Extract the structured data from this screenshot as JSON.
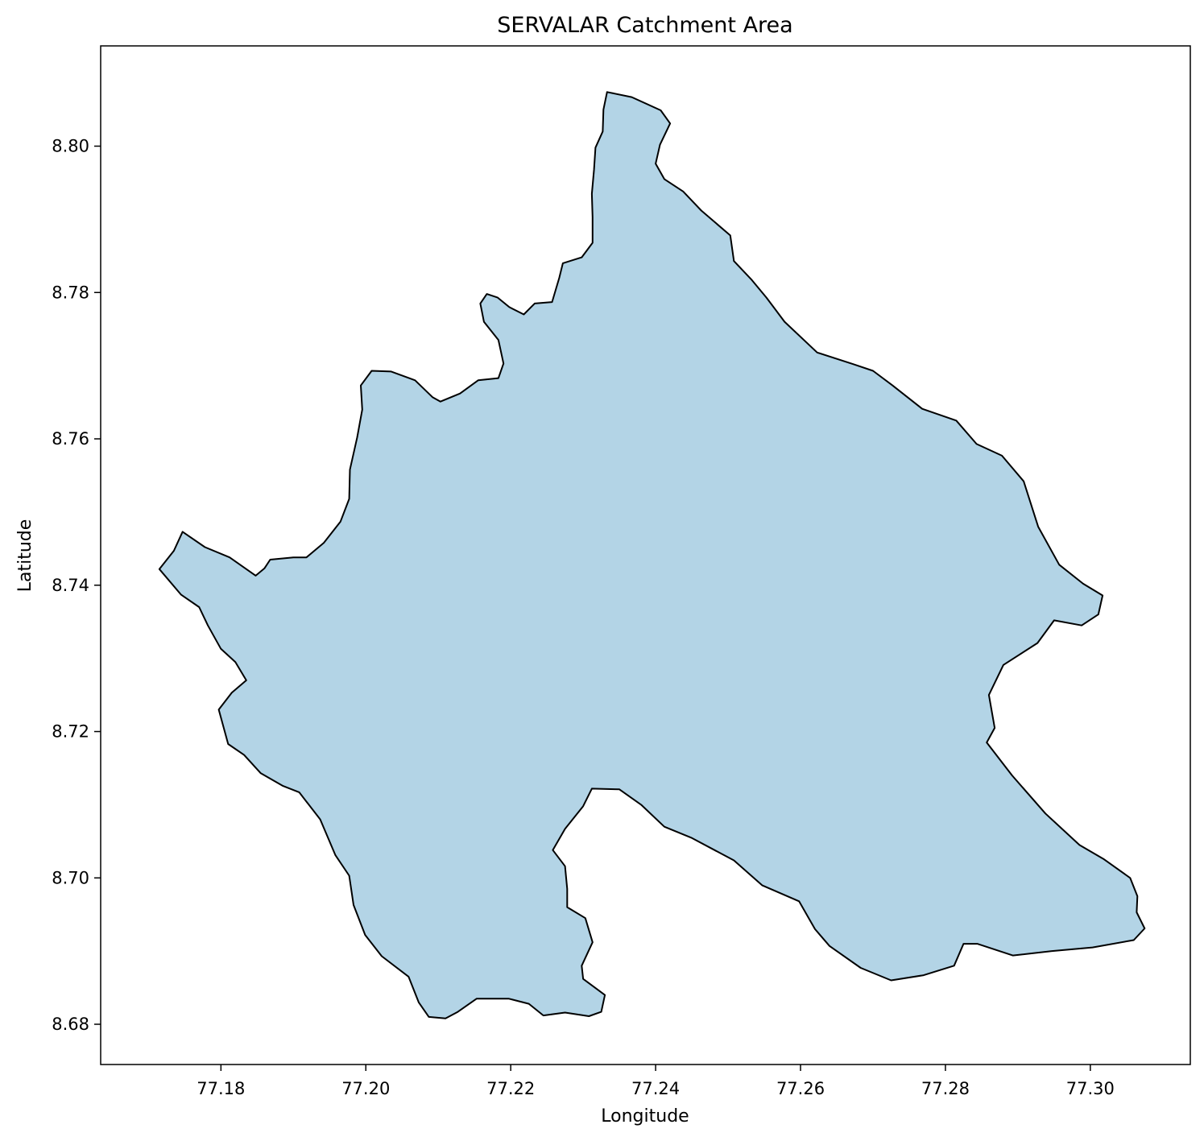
{
  "chart_data": {
    "type": "map",
    "title": "SERVALAR Catchment Area",
    "xlabel": "Longitude",
    "ylabel": "Latitude",
    "xlim": [
      77.1634,
      77.3138
    ],
    "ylim": [
      8.6745,
      8.8137
    ],
    "xticks": [
      77.18,
      77.2,
      77.22,
      77.24,
      77.26,
      77.28,
      77.3
    ],
    "yticks": [
      8.68,
      8.7,
      8.72,
      8.74,
      8.76,
      8.78,
      8.8
    ],
    "xtick_labels": [
      "77.18",
      "77.20",
      "77.22",
      "77.24",
      "77.26",
      "77.28",
      "77.30"
    ],
    "ytick_labels": [
      "8.68",
      "8.70",
      "8.72",
      "8.74",
      "8.76",
      "8.78",
      "8.80"
    ],
    "grid": false,
    "polygon_fill": "#b3d4e6",
    "polygon_edge": "#000000",
    "polygon": [
      [
        77.2333,
        8.8074
      ],
      [
        77.2367,
        8.8067
      ],
      [
        77.2407,
        8.8049
      ],
      [
        77.242,
        8.8031
      ],
      [
        77.2406,
        8.8002
      ],
      [
        77.24,
        8.7976
      ],
      [
        77.2412,
        8.7955
      ],
      [
        77.2438,
        8.7938
      ],
      [
        77.2463,
        8.7912
      ],
      [
        77.2503,
        8.7878
      ],
      [
        77.2508,
        8.7843
      ],
      [
        77.2532,
        8.7818
      ],
      [
        77.2553,
        8.7793
      ],
      [
        77.2578,
        8.776
      ],
      [
        77.2623,
        8.7718
      ],
      [
        77.2673,
        8.7702
      ],
      [
        77.27,
        8.7693
      ],
      [
        77.2727,
        8.7673
      ],
      [
        77.2768,
        8.7641
      ],
      [
        77.2815,
        8.7625
      ],
      [
        77.2843,
        8.7593
      ],
      [
        77.2878,
        8.7577
      ],
      [
        77.2908,
        8.7542
      ],
      [
        77.2928,
        8.748
      ],
      [
        77.2957,
        8.7428
      ],
      [
        77.299,
        8.7402
      ],
      [
        77.3017,
        8.7386
      ],
      [
        77.3011,
        8.736
      ],
      [
        77.2988,
        8.7345
      ],
      [
        77.295,
        8.7352
      ],
      [
        77.2927,
        8.7321
      ],
      [
        77.288,
        8.7291
      ],
      [
        77.286,
        8.725
      ],
      [
        77.2868,
        8.7205
      ],
      [
        77.2857,
        8.7185
      ],
      [
        77.2892,
        8.714
      ],
      [
        77.2938,
        8.7088
      ],
      [
        77.2985,
        8.7045
      ],
      [
        77.3018,
        8.7026
      ],
      [
        77.3055,
        8.7
      ],
      [
        77.3065,
        8.6975
      ],
      [
        77.3064,
        8.6953
      ],
      [
        77.3075,
        8.6931
      ],
      [
        77.306,
        8.6915
      ],
      [
        77.3003,
        8.6905
      ],
      [
        77.2947,
        8.69
      ],
      [
        77.2893,
        8.6894
      ],
      [
        77.2844,
        8.691
      ],
      [
        77.2825,
        8.691
      ],
      [
        77.2812,
        8.688
      ],
      [
        77.277,
        8.6867
      ],
      [
        77.2725,
        8.686
      ],
      [
        77.2683,
        8.6877
      ],
      [
        77.264,
        8.6907
      ],
      [
        77.262,
        8.693
      ],
      [
        77.2598,
        8.6968
      ],
      [
        77.2547,
        8.699
      ],
      [
        77.2508,
        8.7024
      ],
      [
        77.2449,
        8.7055
      ],
      [
        77.2412,
        8.707
      ],
      [
        77.238,
        8.71
      ],
      [
        77.235,
        8.7121
      ],
      [
        77.2312,
        8.7122
      ],
      [
        77.23,
        8.7098
      ],
      [
        77.2275,
        8.7067
      ],
      [
        77.2258,
        8.7038
      ],
      [
        77.2275,
        8.7016
      ],
      [
        77.2278,
        8.6985
      ],
      [
        77.2278,
        8.696
      ],
      [
        77.2303,
        8.6945
      ],
      [
        77.2313,
        8.6912
      ],
      [
        77.2298,
        8.688
      ],
      [
        77.23,
        8.6862
      ],
      [
        77.233,
        8.684
      ],
      [
        77.2325,
        8.6817
      ],
      [
        77.2308,
        8.6811
      ],
      [
        77.2275,
        8.6816
      ],
      [
        77.2245,
        8.6812
      ],
      [
        77.2225,
        8.6828
      ],
      [
        77.2197,
        8.6835
      ],
      [
        77.2153,
        8.6835
      ],
      [
        77.2127,
        8.6817
      ],
      [
        77.211,
        8.6808
      ],
      [
        77.2087,
        8.681
      ],
      [
        77.2073,
        8.683
      ],
      [
        77.2059,
        8.6865
      ],
      [
        77.2022,
        8.6893
      ],
      [
        77.1999,
        8.6922
      ],
      [
        77.1983,
        8.6963
      ],
      [
        77.1977,
        8.7003
      ],
      [
        77.1958,
        8.7031
      ],
      [
        77.1937,
        8.708
      ],
      [
        77.1908,
        8.7117
      ],
      [
        77.1885,
        8.7126
      ],
      [
        77.1855,
        8.7143
      ],
      [
        77.1832,
        8.7168
      ],
      [
        77.181,
        8.7183
      ],
      [
        77.1797,
        8.723
      ],
      [
        77.1815,
        8.7253
      ],
      [
        77.1835,
        8.727
      ],
      [
        77.182,
        8.7295
      ],
      [
        77.18,
        8.7313
      ],
      [
        77.1782,
        8.7345
      ],
      [
        77.177,
        8.737
      ],
      [
        77.1745,
        8.7387
      ],
      [
        77.1715,
        8.7422
      ],
      [
        77.1735,
        8.7447
      ],
      [
        77.1747,
        8.7473
      ],
      [
        77.1778,
        8.7452
      ],
      [
        77.1812,
        8.7438
      ],
      [
        77.1848,
        8.7413
      ],
      [
        77.186,
        8.7423
      ],
      [
        77.1868,
        8.7435
      ],
      [
        77.19,
        8.7438
      ],
      [
        77.1918,
        8.7438
      ],
      [
        77.1942,
        8.7458
      ],
      [
        77.1965,
        8.7487
      ],
      [
        77.1977,
        8.7518
      ],
      [
        77.1978,
        8.7558
      ],
      [
        77.1988,
        8.7602
      ],
      [
        77.1995,
        8.764
      ],
      [
        77.1993,
        8.7673
      ],
      [
        77.2008,
        8.7693
      ],
      [
        77.2035,
        8.7692
      ],
      [
        77.2068,
        8.768
      ],
      [
        77.2092,
        8.7657
      ],
      [
        77.2103,
        8.7651
      ],
      [
        77.213,
        8.7662
      ],
      [
        77.2155,
        8.768
      ],
      [
        77.2183,
        8.7683
      ],
      [
        77.219,
        8.7703
      ],
      [
        77.2183,
        8.7735
      ],
      [
        77.2163,
        8.776
      ],
      [
        77.2158,
        8.7785
      ],
      [
        77.2167,
        8.7798
      ],
      [
        77.2182,
        8.7793
      ],
      [
        77.2198,
        8.778
      ],
      [
        77.2218,
        8.777
      ],
      [
        77.2233,
        8.7785
      ],
      [
        77.2257,
        8.7787
      ],
      [
        77.2267,
        8.782
      ],
      [
        77.2272,
        8.784
      ],
      [
        77.2298,
        8.7848
      ],
      [
        77.2313,
        8.7868
      ],
      [
        77.2313,
        8.7903
      ],
      [
        77.2312,
        8.7935
      ],
      [
        77.2315,
        8.7968
      ],
      [
        77.2317,
        8.7998
      ],
      [
        77.2327,
        8.802
      ],
      [
        77.2328,
        8.805
      ]
    ]
  }
}
